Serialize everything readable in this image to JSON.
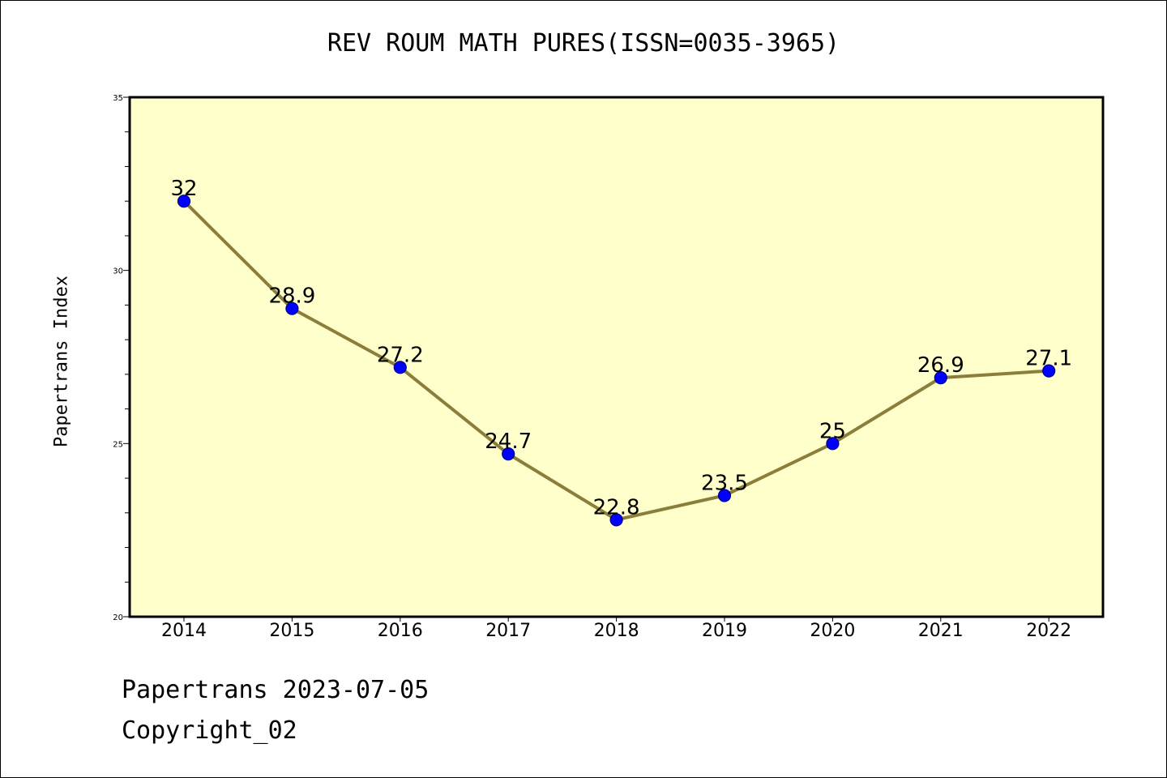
{
  "footer": {
    "line1": "Papertrans 2023-07-05",
    "line2": "Copyright_02"
  },
  "chart_data": {
    "type": "line",
    "title": "REV ROUM MATH PURES(ISSN=0035-3965)",
    "xlabel": "",
    "ylabel": "Papertrans Index",
    "categories": [
      "2014",
      "2015",
      "2016",
      "2017",
      "2018",
      "2019",
      "2020",
      "2021",
      "2022"
    ],
    "series": [
      {
        "values": [
          32,
          28.9,
          27.2,
          24.7,
          22.8,
          23.5,
          25,
          26.9,
          27.1
        ],
        "labels": [
          "32",
          "28.9",
          "27.2",
          "24.7",
          "22.8",
          "23.5",
          "25",
          "26.9",
          "27.1"
        ]
      }
    ],
    "ylim": [
      20,
      35
    ],
    "yticks": [
      "20",
      "25",
      "30",
      "35"
    ],
    "grid": false,
    "legend": "none",
    "colors": {
      "plot_background": "#ffffcc",
      "line": "#8b7d3a",
      "marker_fill": "#0000ff",
      "marker_edge": "#00008b"
    }
  }
}
